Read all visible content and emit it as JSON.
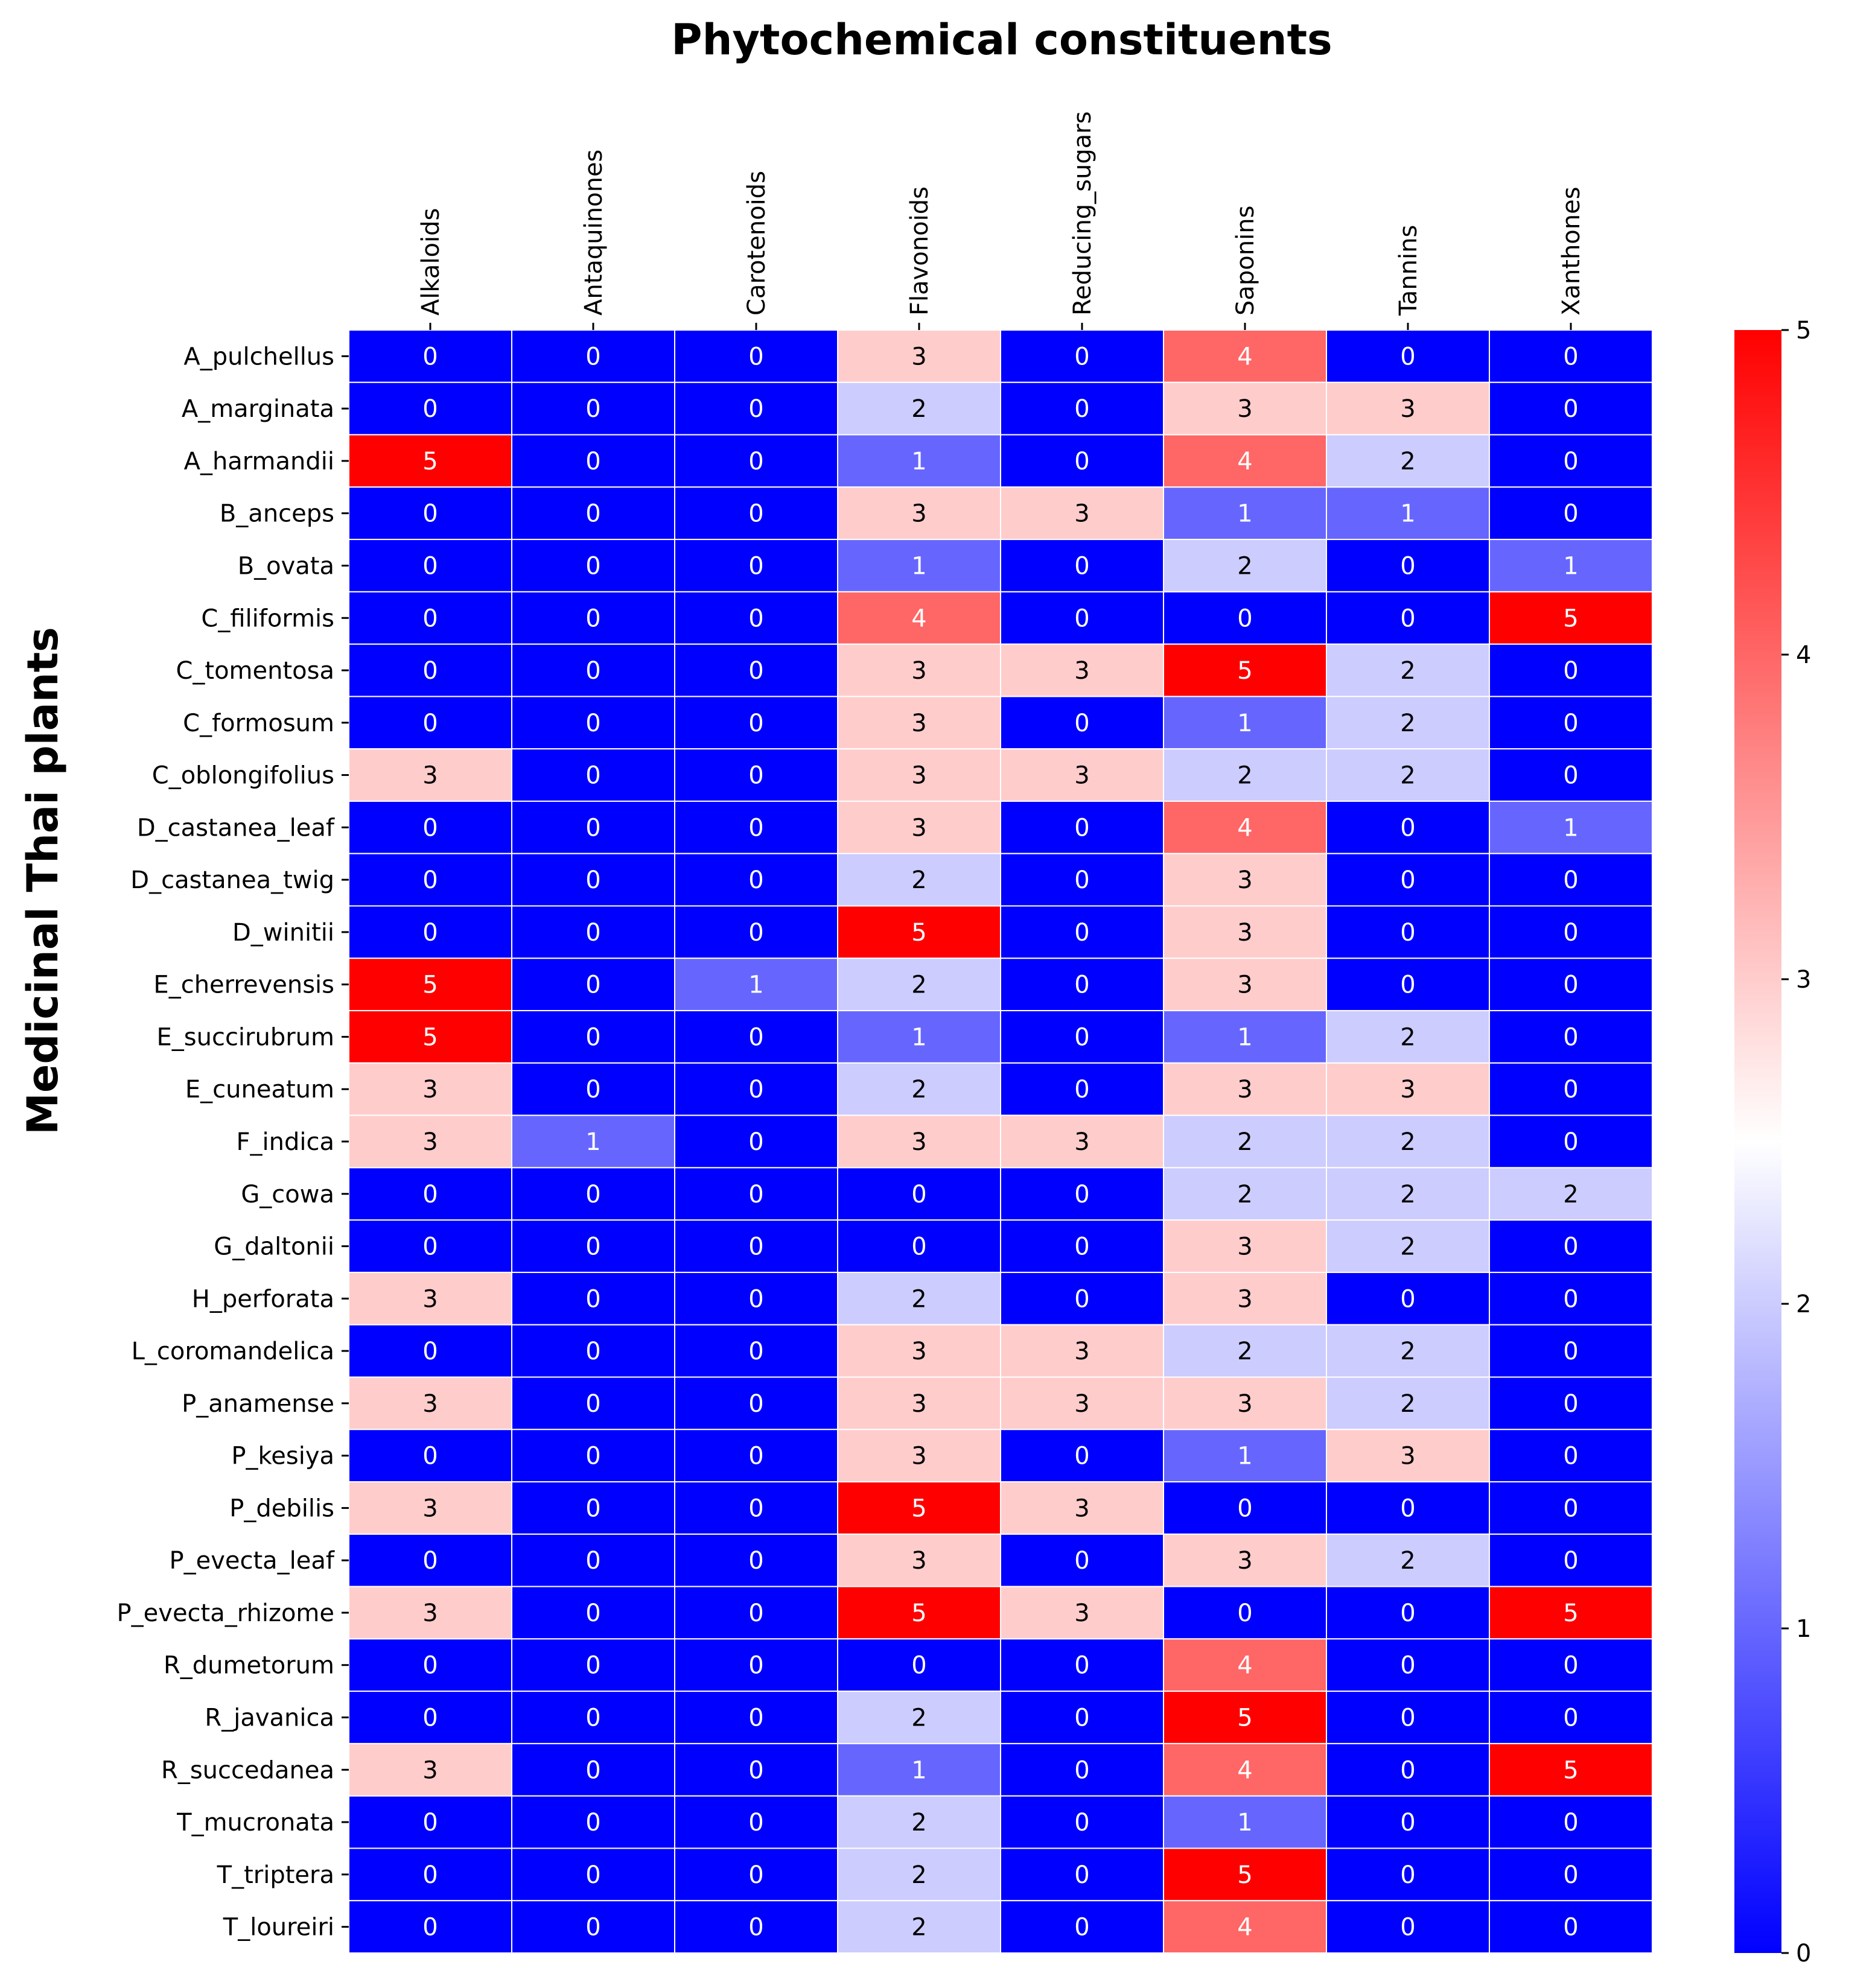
{
  "chart_data": {
    "type": "heatmap",
    "title": "Phytochemical constituents",
    "xlabel": "Phytochemical constituents",
    "ylabel": "Medicinal Thai plants",
    "columns": [
      "Alkaloids",
      "Antaquinones",
      "Carotenoids",
      "Flavonoids",
      "Reducing_sugars",
      "Saponins",
      "Tannins",
      "Xanthones"
    ],
    "rows": [
      "A_pulchellus",
      "A_marginata",
      "A_harmandii",
      "B_anceps",
      "B_ovata",
      "C_filiformis",
      "C_tomentosa",
      "C_formosum",
      "C_oblongifolius",
      "D_castanea_leaf",
      "D_castanea_twig",
      "D_winitii",
      "E_cherrevensis",
      "E_succirubrum",
      "E_cuneatum",
      "F_indica",
      "G_cowa",
      "G_daltonii ",
      "H_perforata",
      "L_coromandelica",
      "P_anamense",
      "P_kesiya",
      "P_debilis",
      "P_evecta_leaf",
      "P_evecta_rhizome",
      "R_dumetorum",
      "R_javanica",
      "R_succedanea",
      "T_mucronata",
      "T_triptera",
      "T_loureiri"
    ],
    "values": [
      [
        0,
        0,
        0,
        3,
        0,
        4,
        0,
        0
      ],
      [
        0,
        0,
        0,
        2,
        0,
        3,
        3,
        0
      ],
      [
        5,
        0,
        0,
        1,
        0,
        4,
        2,
        0
      ],
      [
        0,
        0,
        0,
        3,
        3,
        1,
        1,
        0
      ],
      [
        0,
        0,
        0,
        1,
        0,
        2,
        0,
        1
      ],
      [
        0,
        0,
        0,
        4,
        0,
        0,
        0,
        5
      ],
      [
        0,
        0,
        0,
        3,
        3,
        5,
        2,
        0
      ],
      [
        0,
        0,
        0,
        3,
        0,
        1,
        2,
        0
      ],
      [
        3,
        0,
        0,
        3,
        3,
        2,
        2,
        0
      ],
      [
        0,
        0,
        0,
        3,
        0,
        4,
        0,
        1
      ],
      [
        0,
        0,
        0,
        2,
        0,
        3,
        0,
        0
      ],
      [
        0,
        0,
        0,
        5,
        0,
        3,
        0,
        0
      ],
      [
        5,
        0,
        1,
        2,
        0,
        3,
        0,
        0
      ],
      [
        5,
        0,
        0,
        1,
        0,
        1,
        2,
        0
      ],
      [
        3,
        0,
        0,
        2,
        0,
        3,
        3,
        0
      ],
      [
        3,
        1,
        0,
        3,
        3,
        2,
        2,
        0
      ],
      [
        0,
        0,
        0,
        0,
        0,
        2,
        2,
        2
      ],
      [
        0,
        0,
        0,
        0,
        0,
        3,
        2,
        0
      ],
      [
        3,
        0,
        0,
        2,
        0,
        3,
        0,
        0
      ],
      [
        0,
        0,
        0,
        3,
        3,
        2,
        2,
        0
      ],
      [
        3,
        0,
        0,
        3,
        3,
        3,
        2,
        0
      ],
      [
        0,
        0,
        0,
        3,
        0,
        1,
        3,
        0
      ],
      [
        3,
        0,
        0,
        5,
        3,
        0,
        0,
        0
      ],
      [
        0,
        0,
        0,
        3,
        0,
        3,
        2,
        0
      ],
      [
        3,
        0,
        0,
        5,
        3,
        0,
        0,
        5
      ],
      [
        0,
        0,
        0,
        0,
        0,
        4,
        0,
        0
      ],
      [
        0,
        0,
        0,
        2,
        0,
        5,
        0,
        0
      ],
      [
        3,
        0,
        0,
        1,
        0,
        4,
        0,
        5
      ],
      [
        0,
        0,
        0,
        2,
        0,
        1,
        0,
        0
      ],
      [
        0,
        0,
        0,
        2,
        0,
        5,
        0,
        0
      ],
      [
        0,
        0,
        0,
        2,
        0,
        4,
        0,
        0
      ]
    ],
    "colormap": "bwr",
    "vmin": 0,
    "vmax": 5,
    "colorbar_ticks": [
      "0",
      "1",
      "2",
      "3",
      "4",
      "5"
    ],
    "x_axis_position": "top",
    "annotations": true
  }
}
